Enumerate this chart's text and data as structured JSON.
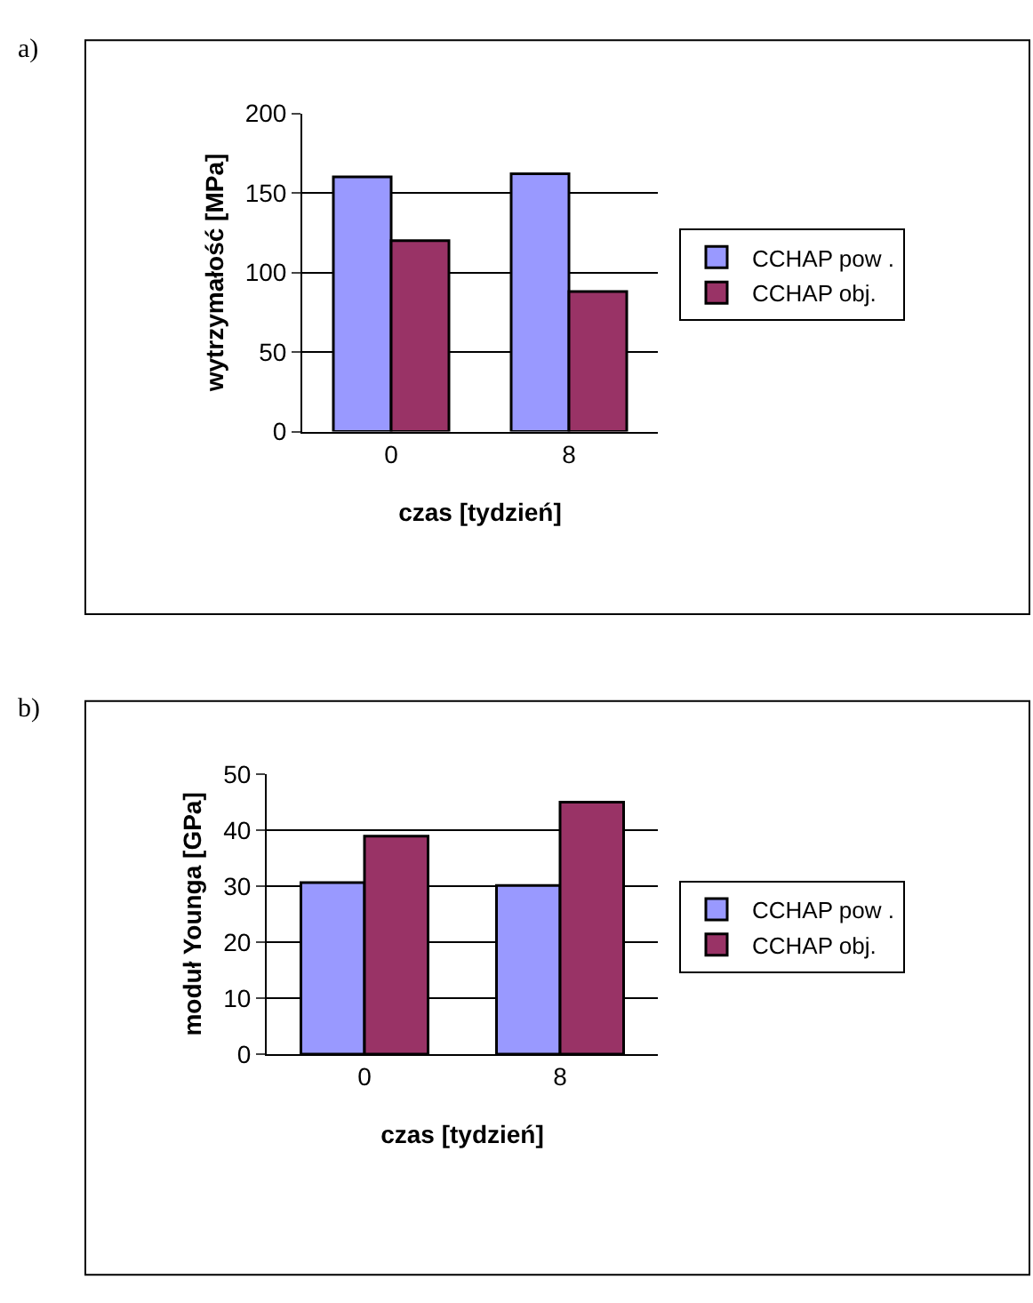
{
  "chart_data": [
    {
      "type": "bar",
      "annotations": [
        "a)"
      ],
      "xlabel": "czas [tydzień]",
      "ylabel": "wytrzymałość [MPa]",
      "categories": [
        "0",
        "8"
      ],
      "series": [
        {
          "name": "CCHAP pow .",
          "color": "#9999ff",
          "values": [
            160,
            162
          ]
        },
        {
          "name": "CCHAP obj.",
          "color": "#993366",
          "values": [
            120,
            88
          ]
        }
      ],
      "ylim": [
        0,
        200
      ],
      "yticks": [
        0,
        50,
        100,
        150,
        200
      ],
      "grid": "y",
      "legend": "right"
    },
    {
      "type": "bar",
      "annotations": [
        "b)"
      ],
      "xlabel": "czas [tydzień]",
      "ylabel": "moduł Younga [GPa]",
      "categories": [
        "0",
        "8"
      ],
      "series": [
        {
          "name": "CCHAP pow .",
          "color": "#9999ff",
          "values": [
            30.6,
            30.1
          ]
        },
        {
          "name": "CCHAP obj.",
          "color": "#993366",
          "values": [
            38.9,
            45.0
          ]
        }
      ],
      "ylim": [
        0,
        50
      ],
      "yticks": [
        0,
        10,
        20,
        30,
        40,
        50
      ],
      "grid": "y",
      "legend": "right"
    }
  ]
}
